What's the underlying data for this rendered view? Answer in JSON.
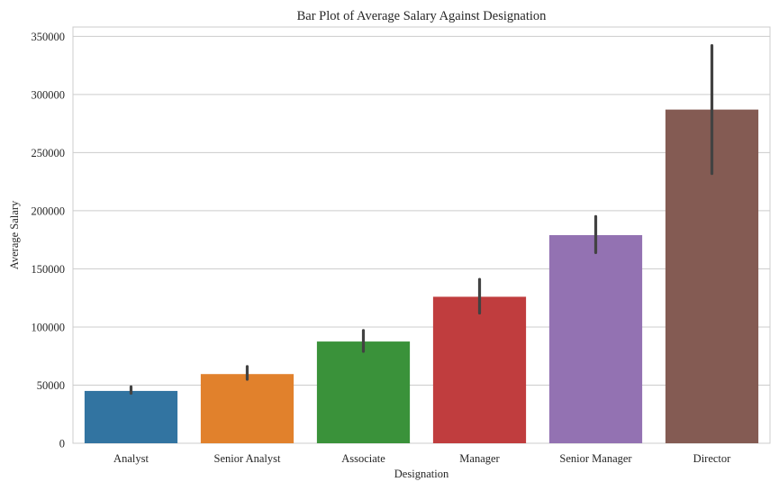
{
  "chart_data": {
    "type": "bar",
    "title": "Bar Plot of Average Salary Against Designation",
    "xlabel": "Designation",
    "ylabel": "Average Salary",
    "categories": [
      "Analyst",
      "Senior Analyst",
      "Associate",
      "Manager",
      "Senior Manager",
      "Director"
    ],
    "values": [
      45000,
      59500,
      87500,
      126000,
      179000,
      287000
    ],
    "error_bars": [
      [
        43000,
        48500
      ],
      [
        55000,
        66000
      ],
      [
        79000,
        97000
      ],
      [
        112000,
        141000
      ],
      [
        164000,
        195000
      ],
      [
        232000,
        342000
      ]
    ],
    "colors": [
      "#3274a1",
      "#e1812c",
      "#3a923a",
      "#c03d3e",
      "#9372b2",
      "#845b53"
    ],
    "error_color": "#424242",
    "ylim": [
      0,
      358000
    ],
    "yticks": [
      0,
      50000,
      100000,
      150000,
      200000,
      250000,
      300000,
      350000
    ],
    "ytick_labels": [
      "0",
      "50000",
      "100000",
      "150000",
      "200000",
      "250000",
      "300000",
      "350000"
    ],
    "grid": "horizontal",
    "legend": "none"
  }
}
